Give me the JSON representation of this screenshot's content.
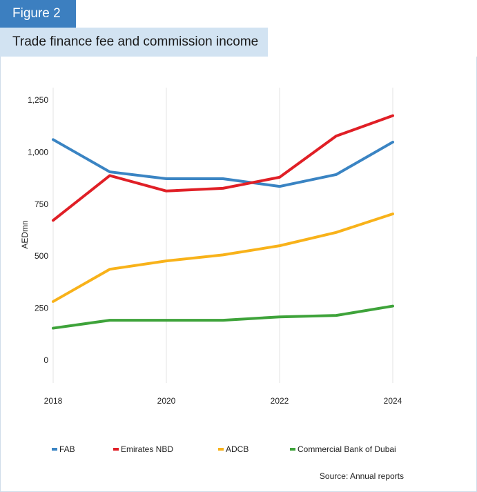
{
  "figure_label": "Figure 2",
  "chart_data": {
    "type": "line",
    "title": "Trade finance fee and commission income",
    "xlabel": "",
    "ylabel": "AEDmn",
    "x": [
      2018,
      2019,
      2020,
      2021,
      2022,
      2023,
      2024
    ],
    "x_tick_labels": [
      "2018",
      "2020",
      "2022",
      "2024"
    ],
    "x_ticks": [
      2018,
      2020,
      2022,
      2024
    ],
    "y_tick_labels": [
      "0",
      "250",
      "500",
      "750",
      "1,000",
      "1,250"
    ],
    "y_ticks": [
      0,
      250,
      500,
      750,
      1000,
      1250
    ],
    "ylim": [
      0,
      1250
    ],
    "xlim": [
      2018,
      2024
    ],
    "grid": "vertical",
    "legend_position": "bottom",
    "series": [
      {
        "name": "FAB",
        "color": "#3a84c3",
        "values": [
          1060,
          905,
          872,
          872,
          835,
          892,
          1048
        ]
      },
      {
        "name": "Emirates NBD",
        "color": "#e01f26",
        "values": [
          672,
          887,
          813,
          826,
          879,
          1077,
          1175
        ]
      },
      {
        "name": "ADCB",
        "color": "#f8b21a",
        "values": [
          282,
          437,
          477,
          506,
          550,
          614,
          703
        ]
      },
      {
        "name": "Commercial Bank of Dubai",
        "color": "#3ea33a",
        "values": [
          154,
          192,
          192,
          192,
          208,
          215,
          260
        ]
      }
    ],
    "source": "Source: Annual reports"
  }
}
